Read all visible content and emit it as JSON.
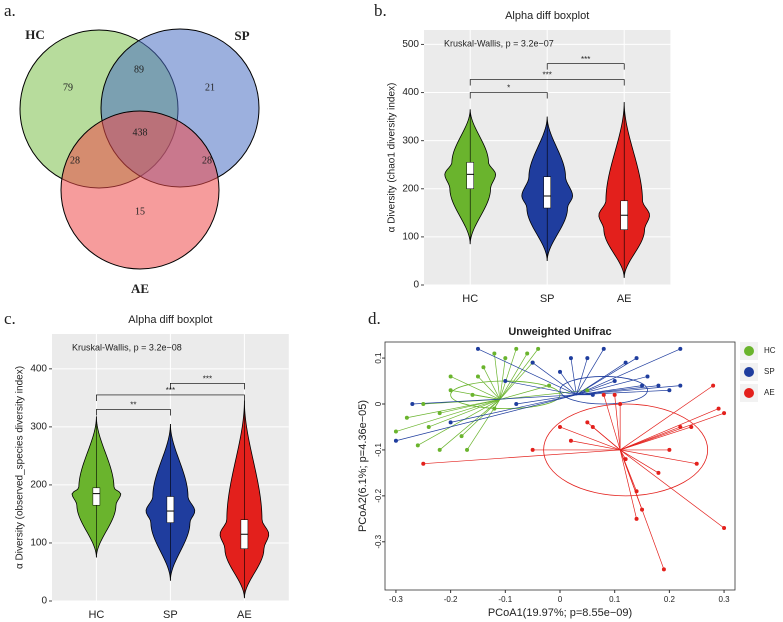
{
  "chart_data": [
    {
      "type": "venn",
      "panel_label": "a.",
      "sets": [
        {
          "name": "HC",
          "color": "#7cc04a"
        },
        {
          "name": "SP",
          "color": "#4a70c2"
        },
        {
          "name": "AE",
          "color": "#ee4a4a"
        }
      ],
      "regions": [
        {
          "sets": [
            "HC"
          ],
          "value": 79
        },
        {
          "sets": [
            "HC",
            "SP"
          ],
          "value": 89
        },
        {
          "sets": [
            "SP"
          ],
          "value": 21
        },
        {
          "sets": [
            "HC",
            "SP",
            "AE"
          ],
          "value": 438
        },
        {
          "sets": [
            "HC",
            "AE"
          ],
          "value": 28
        },
        {
          "sets": [
            "SP",
            "AE"
          ],
          "value": 28
        },
        {
          "sets": [
            "AE"
          ],
          "value": 15
        }
      ]
    },
    {
      "type": "violin",
      "panel_label": "b.",
      "title": "Alpha diff boxplot",
      "y_label": "α Diversity (chao1 diversity index)",
      "annotation": "Kruskal-Wallis, p = 3.2e−07",
      "ylim": [
        0,
        530
      ],
      "yticks": [
        0,
        100,
        200,
        300,
        400,
        500
      ],
      "grid": true,
      "categories": [
        "HC",
        "SP",
        "AE"
      ],
      "colors": [
        "#6ab42d",
        "#1f3d9e",
        "#e3201c"
      ],
      "stats": [
        {
          "min": 85,
          "q1": 200,
          "median": 230,
          "q3": 255,
          "max": 365
        },
        {
          "min": 50,
          "q1": 160,
          "median": 185,
          "q3": 225,
          "max": 350
        },
        {
          "min": 15,
          "q1": 115,
          "median": 145,
          "q3": 175,
          "max": 380
        }
      ],
      "brackets": [
        {
          "groups": [
            "HC",
            "SP"
          ],
          "label": "*",
          "y": 400
        },
        {
          "groups": [
            "HC",
            "AE"
          ],
          "label": "***",
          "y": 427
        },
        {
          "groups": [
            "SP",
            "AE"
          ],
          "label": "***",
          "y": 460
        }
      ]
    },
    {
      "type": "violin",
      "panel_label": "c.",
      "title": "Alpha diff boxplot",
      "y_label": "α Diversity (observed_species diversity index)",
      "annotation": "Kruskal-Wallis, p = 3.2e−08",
      "ylim": [
        0,
        460
      ],
      "yticks": [
        0,
        100,
        200,
        300,
        400
      ],
      "grid": true,
      "categories": [
        "HC",
        "SP",
        "AE"
      ],
      "colors": [
        "#6ab42d",
        "#1f3d9e",
        "#e3201c"
      ],
      "stats": [
        {
          "min": 75,
          "q1": 165,
          "median": 185,
          "q3": 195,
          "max": 318
        },
        {
          "min": 35,
          "q1": 135,
          "median": 155,
          "q3": 180,
          "max": 305
        },
        {
          "min": 5,
          "q1": 90,
          "median": 115,
          "q3": 140,
          "max": 345
        }
      ],
      "brackets": [
        {
          "groups": [
            "HC",
            "SP"
          ],
          "label": "**",
          "y": 330
        },
        {
          "groups": [
            "HC",
            "AE"
          ],
          "label": "***",
          "y": 355
        },
        {
          "groups": [
            "SP",
            "AE"
          ],
          "label": "***",
          "y": 375
        }
      ]
    },
    {
      "type": "scatter",
      "panel_label": "d.",
      "title": "Unweighted Unifrac",
      "x_label": "PCoA1(19.97%; p=8.55e−09)",
      "y_label": "PCoA2(6.1%; p=4.36e−05)",
      "xlim": [
        -0.32,
        0.32
      ],
      "ylim": [
        -0.405,
        0.135
      ],
      "xticks": [
        -0.3,
        -0.2,
        -0.1,
        0.0,
        0.1,
        0.2,
        0.3
      ],
      "yticks": [
        -0.3,
        -0.2,
        -0.1,
        0.0,
        0.1
      ],
      "series": [
        {
          "name": "HC",
          "color": "#6ab42d",
          "centroid": [
            -0.11,
            0.01
          ],
          "ellipse": {
            "cx": -0.1,
            "cy": 0.02,
            "rx": 0.1,
            "ry": 0.03
          },
          "x": [
            -0.3,
            -0.28,
            -0.25,
            -0.24,
            -0.22,
            -0.2,
            -0.18,
            -0.17,
            -0.15,
            -0.14,
            -0.12,
            -0.1,
            -0.08,
            -0.06,
            -0.05,
            -0.2,
            -0.16,
            -0.12,
            -0.02,
            0.05,
            -0.26,
            -0.22,
            -0.04
          ],
          "y": [
            -0.06,
            -0.03,
            0.0,
            -0.05,
            -0.02,
            0.03,
            -0.07,
            -0.1,
            0.06,
            0.08,
            0.11,
            0.1,
            0.12,
            0.11,
            0.09,
            0.06,
            0.02,
            -0.01,
            0.04,
            0.03,
            -0.09,
            -0.1,
            0.12
          ]
        },
        {
          "name": "SP",
          "color": "#1f3d9e",
          "centroid": [
            0.03,
            0.02
          ],
          "ellipse": {
            "cx": 0.08,
            "cy": 0.03,
            "rx": 0.08,
            "ry": 0.03
          },
          "x": [
            -0.3,
            -0.27,
            -0.2,
            -0.15,
            -0.1,
            -0.05,
            0.0,
            0.02,
            0.05,
            0.08,
            0.12,
            0.14,
            0.16,
            0.18,
            0.2,
            0.22,
            0.22,
            0.1,
            0.06,
            -0.08,
            0.15
          ],
          "y": [
            -0.08,
            0.0,
            -0.04,
            0.12,
            0.05,
            0.09,
            0.07,
            0.1,
            0.1,
            0.12,
            0.09,
            0.1,
            0.06,
            0.04,
            0.03,
            0.04,
            0.12,
            0.05,
            0.02,
            0.0,
            0.04
          ]
        },
        {
          "name": "AE",
          "color": "#e3201c",
          "centroid": [
            0.11,
            -0.1
          ],
          "ellipse": {
            "cx": 0.12,
            "cy": -0.1,
            "rx": 0.15,
            "ry": 0.1
          },
          "x": [
            -0.25,
            -0.05,
            0.0,
            0.02,
            0.05,
            0.08,
            0.1,
            0.12,
            0.14,
            0.15,
            0.18,
            0.2,
            0.22,
            0.24,
            0.25,
            0.28,
            0.29,
            0.3,
            0.3,
            0.19,
            0.14,
            0.06,
            0.11
          ],
          "y": [
            -0.13,
            -0.1,
            -0.05,
            -0.08,
            -0.04,
            0.02,
            0.02,
            -0.12,
            -0.19,
            -0.23,
            -0.15,
            -0.1,
            -0.05,
            -0.05,
            -0.13,
            0.04,
            -0.01,
            -0.02,
            -0.27,
            -0.36,
            -0.25,
            -0.05,
            0.0
          ]
        }
      ]
    }
  ]
}
